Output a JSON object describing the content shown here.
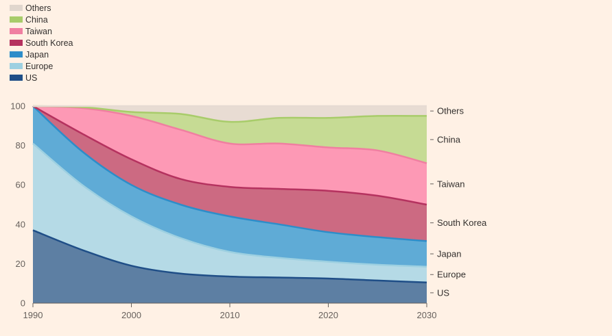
{
  "chart_data": {
    "type": "area",
    "stacked": true,
    "x": [
      1990,
      1995,
      2000,
      2005,
      2010,
      2015,
      2020,
      2025,
      2030
    ],
    "series": [
      {
        "name": "US",
        "color": "#1f4e87",
        "fill": "#5d7fa3",
        "values": [
          37,
          27,
          19,
          15,
          13.5,
          13,
          12.5,
          11.5,
          10.5
        ]
      },
      {
        "name": "Europe",
        "color": "#9dd0e1",
        "fill": "#b5dae6",
        "values": [
          44,
          33,
          25,
          18,
          12.5,
          10,
          8.5,
          8,
          8
        ]
      },
      {
        "name": "Japan",
        "color": "#2d8dc9",
        "fill": "#5fabd6",
        "values": [
          19,
          17,
          16,
          17,
          18,
          17,
          15,
          14,
          13
        ]
      },
      {
        "name": "South Korea",
        "color": "#b5325f",
        "fill": "#cc6a82",
        "values": [
          0,
          9,
          13,
          13,
          15,
          18,
          21,
          21,
          18.5
        ]
      },
      {
        "name": "Taiwan",
        "color": "#f07fa1",
        "fill": "#fd99b5",
        "values": [
          0,
          13,
          22,
          25,
          22,
          23,
          22,
          23,
          21
        ]
      },
      {
        "name": "China",
        "color": "#a8cc6a",
        "fill": "#c6db94",
        "values": [
          0,
          0.5,
          2,
          8,
          11,
          13,
          15,
          17.5,
          24
        ]
      },
      {
        "name": "Others",
        "color": "#e6dbd3",
        "fill": "#e8dcd3",
        "values": [
          0,
          0.5,
          3,
          4,
          8,
          6,
          6,
          5,
          5
        ]
      }
    ],
    "xlim": [
      1990,
      2030
    ],
    "ylim": [
      0,
      100
    ],
    "xticks": [
      "1990",
      "2000",
      "2010",
      "2020",
      "2030"
    ],
    "yticks": [
      "0",
      "20",
      "40",
      "60",
      "80",
      "100"
    ],
    "legend": {
      "placement": "top-left",
      "order": [
        "Others",
        "China",
        "Taiwan",
        "South Korea",
        "Japan",
        "Europe",
        "US"
      ]
    },
    "right_labels": [
      "Others",
      "China",
      "Taiwan",
      "South Korea",
      "Japan",
      "Europe",
      "US"
    ],
    "grid": false
  }
}
